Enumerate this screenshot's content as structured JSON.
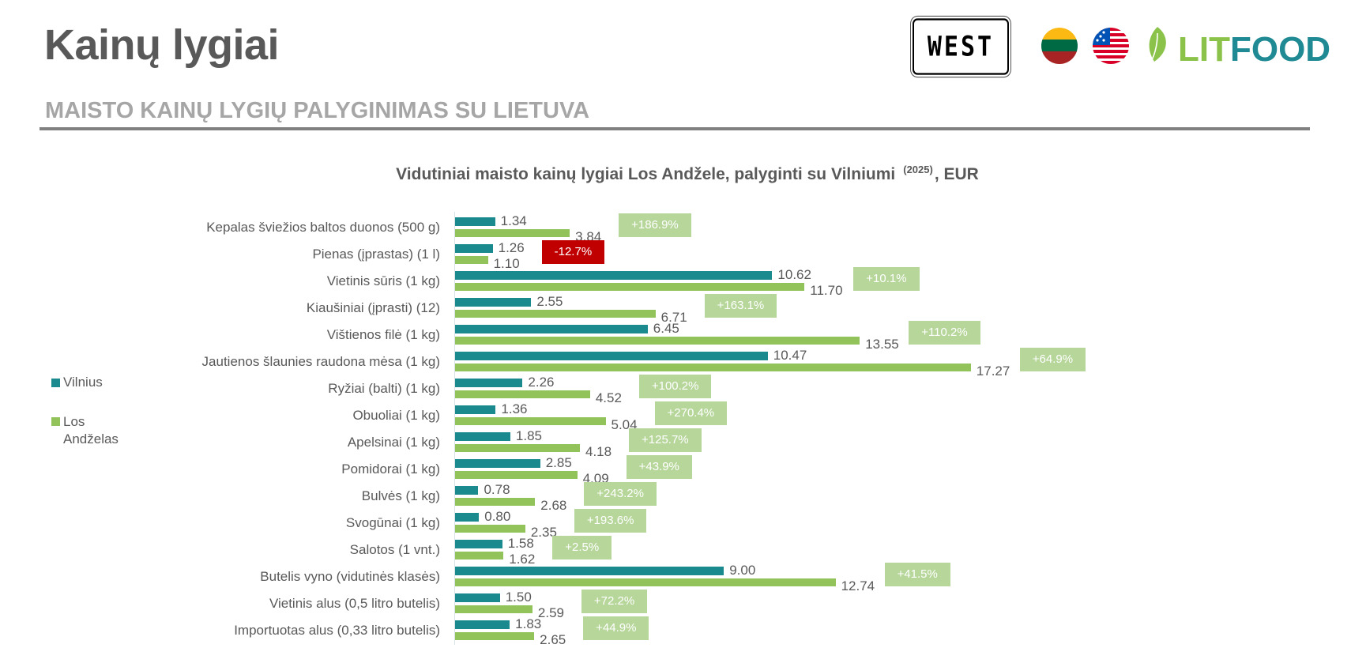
{
  "header": {
    "title": "Kainų lygiai",
    "subtitle": "MAISTO KAINŲ LYGIŲ PALYGINIMAS SU LIETUVA",
    "logos": {
      "west": "WEST",
      "litfood_lit": "LIT",
      "litfood_food": "FOOD"
    }
  },
  "colors": {
    "vilnius": "#1b8a8f",
    "la": "#92c35a",
    "pct_positive": "#b6d69a",
    "pct_negative": "#c00000",
    "lit": "#8bc34a",
    "food": "#1f8a93"
  },
  "chart_data": {
    "type": "bar",
    "orientation": "horizontal",
    "title": "Vidutiniai maisto kainų lygiai Los Andžele, palyginti su Vilniumi",
    "title_sup": "(2025)",
    "title_suffix": ", EUR",
    "legend": {
      "placement": "left",
      "entries": [
        "Vilnius",
        "Los",
        "Andželas"
      ]
    },
    "categories": [
      "Kepalas šviežios baltos duonos (500 g)",
      "Pienas (įprastas) (1 l)",
      "Vietinis sūris (1 kg)",
      "Kiaušiniai (įprasti) (12)",
      "Vištienos filė (1 kg)",
      "Jautienos šlaunies raudona mėsa (1 kg)",
      "Ryžiai (balti) (1 kg)",
      "Obuoliai (1 kg)",
      "Apelsinai (1 kg)",
      "Pomidorai (1 kg)",
      "Bulvės (1 kg)",
      "Svogūnai (1 kg)",
      "Salotos (1 vnt.)",
      "Butelis vyno (vidutinės klasės)",
      "Vietinis alus (0,5 litro butelis)",
      "Importuotas alus (0,33 litro butelis)"
    ],
    "series": [
      {
        "name": "Vilnius",
        "values": [
          1.34,
          1.26,
          10.62,
          2.55,
          6.45,
          10.47,
          2.26,
          1.36,
          1.85,
          2.85,
          0.78,
          0.8,
          1.58,
          9.0,
          1.5,
          1.83
        ]
      },
      {
        "name": "Los Andželas",
        "values": [
          3.84,
          1.1,
          11.7,
          6.71,
          13.55,
          17.27,
          4.52,
          5.04,
          4.18,
          4.09,
          2.68,
          2.35,
          1.62,
          12.74,
          2.59,
          2.65
        ]
      }
    ],
    "differences": [
      "+186.9%",
      "-12.7%",
      "+10.1%",
      "+163.1%",
      "+110.2%",
      "+64.9%",
      "+100.2%",
      "+270.4%",
      "+125.7%",
      "+43.9%",
      "+243.2%",
      "+193.6%",
      "+2.5%",
      "+41.5%",
      "+72.2%",
      "+44.9%"
    ],
    "xlim": [
      0,
      20
    ],
    "grid": false
  }
}
